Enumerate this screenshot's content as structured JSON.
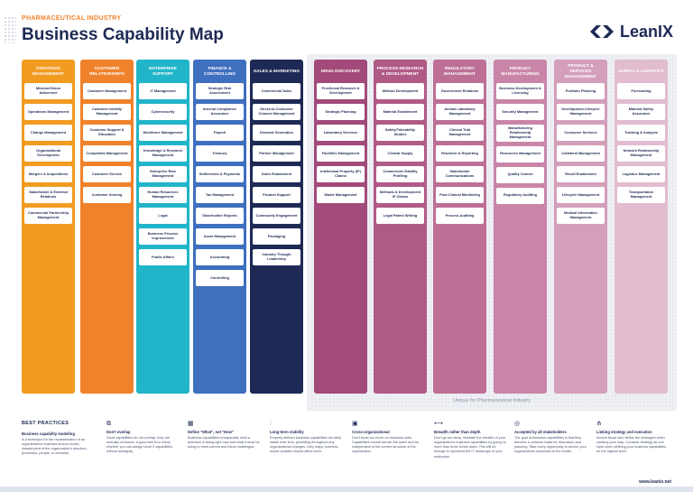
{
  "header": {
    "kicker": "PHARMACEUTICAL INDUSTRY",
    "title": "Business Capability Map",
    "logo_text": "LeanIX"
  },
  "pharma_label": "Unique for Pharmaceutical Industry",
  "columns": [
    {
      "title": "STRATEGIC MANAGEMENT",
      "color": "#f29b21",
      "caps": [
        "Mission/Vision Adherence",
        "Operations Management",
        "Change Management",
        "Organizational Development",
        "Mergers & Acquisitions",
        "Stakeholder & External Relations",
        "Commercial Partnership Management"
      ]
    },
    {
      "title": "CUSTOMER RELATIONSHIPS",
      "color": "#f0822c",
      "caps": [
        "Customer Management",
        "Customer Identity Management",
        "Customer Support & Education",
        "Complaints Management",
        "Customer Service",
        "Customer Scoring"
      ]
    },
    {
      "title": "ENTERPRISE SUPPORT",
      "color": "#21b5c9",
      "caps": [
        "IT Management",
        "Cybersecurity",
        "Workforce Management",
        "Knowledge & Research Management",
        "Enterprise Risk Management",
        "Human Resources Management",
        "Legal",
        "Business Process Improvement",
        "Public Affairs"
      ]
    },
    {
      "title": "FINANCE & CONTROLLING",
      "color": "#3f6fbf",
      "caps": [
        "Strategic Risk Assessment",
        "Internal Compliance Assurance",
        "Payroll",
        "Treasury",
        "Settlements & Payments",
        "Tax Management",
        "Shareholder Reports",
        "Asset Management",
        "Accounting",
        "Controlling"
      ]
    },
    {
      "title": "SALES & MARKETING",
      "color": "#1e2a55",
      "caps": [
        "Commercial Sales",
        "Direct-to-Consumer Channel Management",
        "Demand Generation",
        "Partner Management",
        "Sales Enablement",
        "Product Support",
        "Community Engagement",
        "Packaging",
        "Industry Thought Leadership"
      ]
    },
    {
      "title": "DRUG DISCOVERY",
      "color": "#a24a7a",
      "caps": [
        "Preclinical Research & Development",
        "Strategic Planning",
        "Laboratory Services",
        "Facilities Management",
        "Intellectual Property (IP) Claims",
        "Waste Management"
      ]
    },
    {
      "title": "PROCESS RESEARCH & DEVELOPMENT",
      "color": "#b05a86",
      "caps": [
        "Method Development",
        "Material Enablement",
        "Safety/Tolerability Studies",
        "Clinical Supply",
        "Commercial Viability Profiling",
        "Methods & Development IP Claims",
        "Legal Patent Writing"
      ]
    },
    {
      "title": "REGULATORY MANAGEMENT",
      "color": "#bd6f96",
      "caps": [
        "Government Relations",
        "Animal Laboratory Management",
        "Clinical Trial Management",
        "Research & Reporting",
        "Stakeholder Communications",
        "Post-Clinical Monitoring",
        "Process Auditing"
      ]
    },
    {
      "title": "PRODUCT MANUFACTURING",
      "color": "#c985a7",
      "caps": [
        "Business Development & Licensing",
        "Security Management",
        "Manufacturing Relationship Management",
        "Resources Management",
        "Quality Control",
        "Regulatory Auditing"
      ]
    },
    {
      "title": "PRODUCT & SERVICES MANAGEMENT",
      "color": "#d49fbb",
      "caps": [
        "Portfolio Planning",
        "Development Lifecycle Management",
        "Consumer Services",
        "Collateral Management",
        "Recall Enablement",
        "Lifecycle Management",
        "Medical Information Management"
      ]
    },
    {
      "title": "SUPPLY & LOGISTICS",
      "color": "#e2bccf",
      "caps": [
        "Forecasting",
        "Material Safety Assurance",
        "Tracking & Analysis",
        "Network Relationship Management",
        "Logistics Management",
        "Transportation Management"
      ]
    }
  ],
  "best_practices": {
    "title": "BEST PRACTICES",
    "intro_head": "Business capability modeling",
    "intro_text": "is a technique for the representation of an organization's business anchor model, independent of the organization's structure, processes, people, or domains.",
    "items": [
      {
        "icon": "overlap-icon",
        "glyph": "⧉",
        "head": "Don't overlap",
        "text": "Good capabilities do not overlap: they are mutually exclusive. A good test is to check whether you can assign Level 2 capabilities without ambiguity."
      },
      {
        "icon": "grid-icon",
        "glyph": "▦",
        "head": "Define \"What\", not \"How\"",
        "text": "Business capabilities encapsulate what a business is doing right now and what it must be doing to meet current and future challenges."
      },
      {
        "icon": "chart-icon",
        "glyph": "⫶",
        "head": "Long-term stability",
        "text": "Properly defined business capabilities are fairly stable over time, persisting throughout any organizational changes. Only major business model updates should affect them."
      },
      {
        "icon": "briefcase-icon",
        "glyph": "▣",
        "head": "Cross-organizational",
        "text": "Don't focus too much on business units. Capabilities should remain the same and be independent of the current structure of the organization."
      },
      {
        "icon": "width-icon",
        "glyph": "⟷",
        "head": "Breadth rather than depth",
        "text": "Don't go too deep. Illustrate the breadth of your organization's business capabilities by going no more than three levels down. This will be enough to represent the IT landscape of your enterprise."
      },
      {
        "icon": "check-circle-icon",
        "glyph": "◎",
        "head": "Accepted by all stakeholders",
        "text": "The goal of business capabilities is that they become a common basis for discussion and planning. Take every opportunity to anchor your organizations processes to the model."
      },
      {
        "icon": "hierarchy-icon",
        "glyph": "⋔",
        "head": "Linking strategy and execution",
        "text": "Involve those who define the strategies when creating your map. Consider strategy as one input when defining your business capabilities on the highest level."
      }
    ]
  },
  "footer_url": "www.leanix.net"
}
